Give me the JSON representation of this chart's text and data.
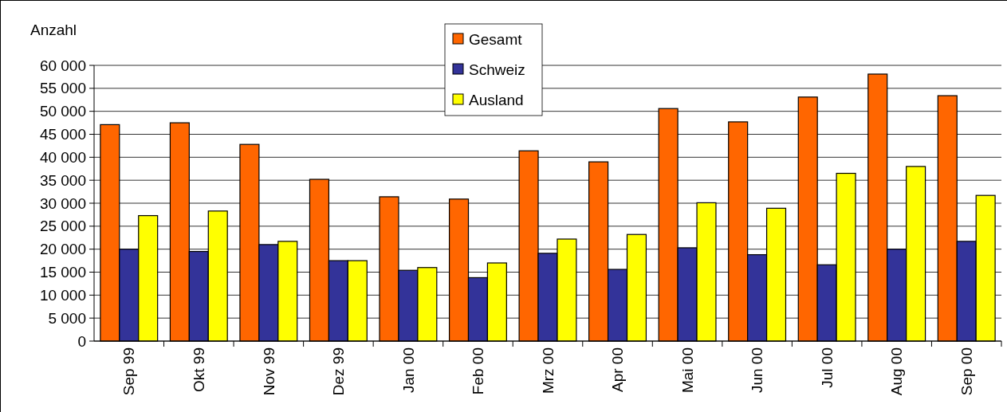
{
  "chart_data": {
    "type": "bar",
    "ylabel": "Anzahl",
    "categories": [
      "Sep 99",
      "Okt 99",
      "Nov 99",
      "Dez 99",
      "Jan 00",
      "Feb 00",
      "Mrz 00",
      "Apr 00",
      "Mai 00",
      "Jun 00",
      "Jul 00",
      "Aug 00",
      "Sep 00"
    ],
    "series": [
      {
        "name": "Gesamt",
        "color": "#ff6600",
        "values": [
          47100,
          47500,
          42800,
          35200,
          31400,
          30900,
          41400,
          39000,
          50600,
          47700,
          53100,
          58100,
          53400
        ]
      },
      {
        "name": "Schweiz",
        "color": "#333399",
        "values": [
          20000,
          19500,
          21000,
          17500,
          15400,
          13800,
          19100,
          15600,
          20300,
          18800,
          16600,
          20000,
          21700
        ]
      },
      {
        "name": "Ausland",
        "color": "#ffff00",
        "values": [
          27300,
          28300,
          21700,
          17500,
          16000,
          17000,
          22200,
          23200,
          30100,
          28900,
          36500,
          38000,
          31700
        ]
      }
    ],
    "ylim": [
      0,
      60000
    ],
    "yticks": [
      {
        "value": 0,
        "label": "0"
      },
      {
        "value": 5000,
        "label": "5 000"
      },
      {
        "value": 10000,
        "label": "10 000"
      },
      {
        "value": 15000,
        "label": "15 000"
      },
      {
        "value": 20000,
        "label": "20 000"
      },
      {
        "value": 25000,
        "label": "25 000"
      },
      {
        "value": 30000,
        "label": "30 000"
      },
      {
        "value": 35000,
        "label": "35 000"
      },
      {
        "value": 40000,
        "label": "40 000"
      },
      {
        "value": 45000,
        "label": "45 000"
      },
      {
        "value": 50000,
        "label": "50 000"
      },
      {
        "value": 55000,
        "label": "55 000"
      },
      {
        "value": 60000,
        "label": "60 000"
      }
    ],
    "grid": "y",
    "legend": "top"
  }
}
